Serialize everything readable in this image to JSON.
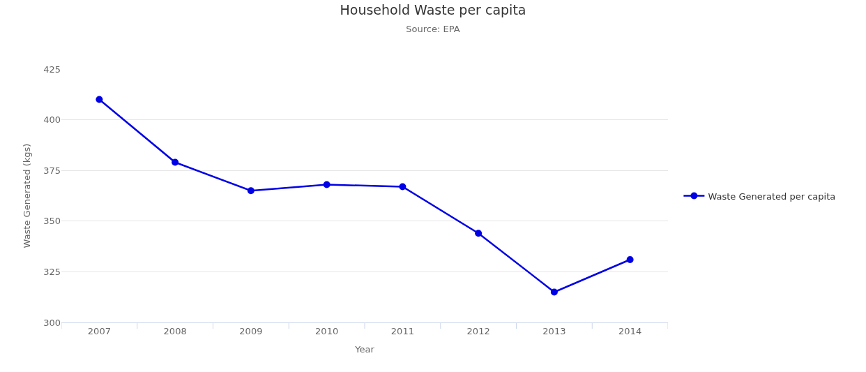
{
  "chart_data": {
    "type": "line",
    "title": "Household Waste per capita",
    "subtitle": "Source: EPA",
    "xlabel": "Year",
    "ylabel": "Waste Generated (kgs)",
    "categories": [
      "2007",
      "2008",
      "2009",
      "2010",
      "2011",
      "2012",
      "2013",
      "2014"
    ],
    "series": [
      {
        "name": "Waste Generated per capita",
        "color": "#0000e6",
        "values": [
          410,
          379,
          365,
          368,
          367,
          344,
          315,
          331
        ]
      }
    ],
    "ylim": [
      300,
      425
    ],
    "yticks": [
      300,
      325,
      350,
      375,
      400,
      425
    ],
    "grid": "y",
    "legend": "right",
    "marker": "circle",
    "line_style": "solid"
  }
}
